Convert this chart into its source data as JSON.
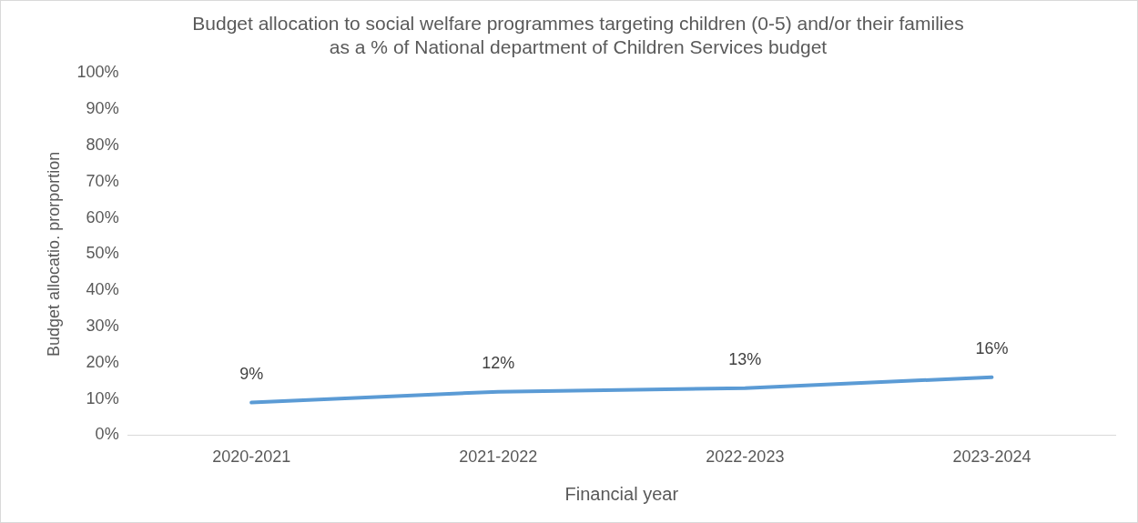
{
  "chart_data": {
    "type": "line",
    "title": "Budget allocation to social welfare programmes targeting children (0-5) and/or their families as a % of National department of Children Services budget",
    "xlabel": "Financial year",
    "ylabel": "Budget allocatio. prorportion",
    "categories": [
      "2020-2021",
      "2021-2022",
      "2022-2023",
      "2023-2024"
    ],
    "series": [
      {
        "color": "#5b9bd5",
        "values": [
          9,
          12,
          13,
          16
        ],
        "value_labels": [
          "9%",
          "12%",
          "13%",
          "16%"
        ]
      }
    ],
    "ylim": [
      0,
      100
    ],
    "yticks": [
      {
        "value": 0,
        "label": "0%"
      },
      {
        "value": 10,
        "label": "10%"
      },
      {
        "value": 20,
        "label": "20%"
      },
      {
        "value": 30,
        "label": "30%"
      },
      {
        "value": 40,
        "label": "40%"
      },
      {
        "value": 50,
        "label": "50%"
      },
      {
        "value": 60,
        "label": "60%"
      },
      {
        "value": 70,
        "label": "70%"
      },
      {
        "value": 80,
        "label": "80%"
      },
      {
        "value": 90,
        "label": "90%"
      },
      {
        "value": 100,
        "label": "100%"
      }
    ],
    "grid": false,
    "legend": false,
    "marker": "none",
    "line_style": "solid"
  }
}
